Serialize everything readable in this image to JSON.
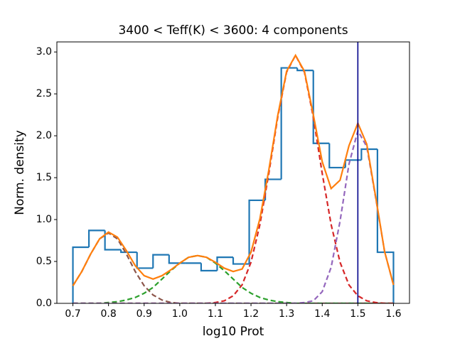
{
  "chart_data": {
    "type": "histogram",
    "title": "3400 < Teff(K) < 3600: 4 components",
    "xlabel": "log10 Prot",
    "ylabel": "Norm. density",
    "bins": [
      0.7,
      0.745,
      0.79,
      0.835,
      0.88,
      0.925,
      0.97,
      1.015,
      1.06,
      1.105,
      1.15,
      1.195,
      1.24,
      1.285,
      1.33,
      1.375,
      1.42,
      1.465,
      1.51,
      1.555,
      1.6
    ],
    "values": [
      0.67,
      0.87,
      0.64,
      0.61,
      0.42,
      0.58,
      0.48,
      0.48,
      0.39,
      0.55,
      0.47,
      1.23,
      1.48,
      2.81,
      2.78,
      1.91,
      1.62,
      1.71,
      1.84,
      0.61
    ],
    "color": "#1f77b4",
    "curves": {
      "x": [
        0.7,
        0.725,
        0.75,
        0.775,
        0.8,
        0.825,
        0.85,
        0.875,
        0.9,
        0.925,
        0.95,
        0.975,
        1.0,
        1.025,
        1.05,
        1.075,
        1.1,
        1.125,
        1.15,
        1.175,
        1.2,
        1.225,
        1.25,
        1.275,
        1.3,
        1.325,
        1.35,
        1.375,
        1.4,
        1.425,
        1.45,
        1.475,
        1.5,
        1.525,
        1.55,
        1.575,
        1.6
      ],
      "series": [
        {
          "color": "#8c564b",
          "dashed": true,
          "values": [
            0.21,
            0.38,
            0.59,
            0.77,
            0.84,
            0.77,
            0.59,
            0.38,
            0.21,
            0.1,
            0.04,
            0.01,
            0,
            0,
            0,
            0,
            0,
            0,
            0,
            0,
            0,
            0,
            0,
            0,
            0,
            0,
            0,
            0,
            0,
            0,
            0,
            0,
            0,
            0,
            0,
            0,
            0
          ]
        },
        {
          "color": "#2ca02c",
          "dashed": true,
          "values": [
            0,
            0,
            0,
            0,
            0.01,
            0.02,
            0.04,
            0.07,
            0.12,
            0.19,
            0.29,
            0.39,
            0.48,
            0.55,
            0.57,
            0.55,
            0.48,
            0.39,
            0.29,
            0.19,
            0.12,
            0.07,
            0.04,
            0.02,
            0.01,
            0,
            0,
            0,
            0,
            0,
            0,
            0,
            0,
            0,
            0,
            0,
            0
          ]
        },
        {
          "color": "#d62728",
          "dashed": true,
          "values": [
            0,
            0,
            0,
            0,
            0,
            0,
            0,
            0,
            0,
            0,
            0,
            0,
            0,
            0,
            0,
            0,
            0.01,
            0.03,
            0.09,
            0.22,
            0.49,
            0.94,
            1.55,
            2.22,
            2.76,
            2.96,
            2.76,
            2.22,
            1.55,
            0.94,
            0.49,
            0.22,
            0.09,
            0.03,
            0.01,
            0,
            0
          ]
        },
        {
          "color": "#9467bd",
          "dashed": true,
          "values": [
            0,
            0,
            0,
            0,
            0,
            0,
            0,
            0,
            0,
            0,
            0,
            0,
            0,
            0,
            0,
            0,
            0,
            0,
            0,
            0,
            0,
            0,
            0,
            0,
            0,
            0,
            0.01,
            0.03,
            0.14,
            0.43,
            0.98,
            1.66,
            2.06,
            1.87,
            1.26,
            0.62,
            0.22
          ]
        },
        {
          "color": "#ff7f0e",
          "dashed": false,
          "values": [
            0.21,
            0.38,
            0.59,
            0.77,
            0.85,
            0.79,
            0.63,
            0.45,
            0.33,
            0.29,
            0.33,
            0.4,
            0.48,
            0.55,
            0.57,
            0.55,
            0.49,
            0.42,
            0.38,
            0.41,
            0.61,
            1.01,
            1.59,
            2.24,
            2.77,
            2.96,
            2.77,
            2.25,
            1.69,
            1.37,
            1.47,
            1.88,
            2.15,
            1.9,
            1.27,
            0.62,
            0.22
          ]
        }
      ]
    },
    "vline": {
      "x": 1.5,
      "color": "#00008b"
    },
    "xlim": [
      0.655,
      1.645
    ],
    "ylim": [
      0,
      3.12
    ],
    "xticks": [
      0.7,
      0.8,
      0.9,
      {
        "value": 1,
        "label": "1.0"
      },
      1.1,
      1.2,
      1.3,
      1.4,
      1.5,
      1.6
    ],
    "yticks": [
      {
        "value": 0,
        "label": "0.0"
      },
      0.5,
      {
        "value": 1,
        "label": "1.0"
      },
      1.5,
      {
        "value": 2,
        "label": "2.0"
      },
      2.5,
      {
        "value": 3,
        "label": "3.0"
      }
    ]
  }
}
